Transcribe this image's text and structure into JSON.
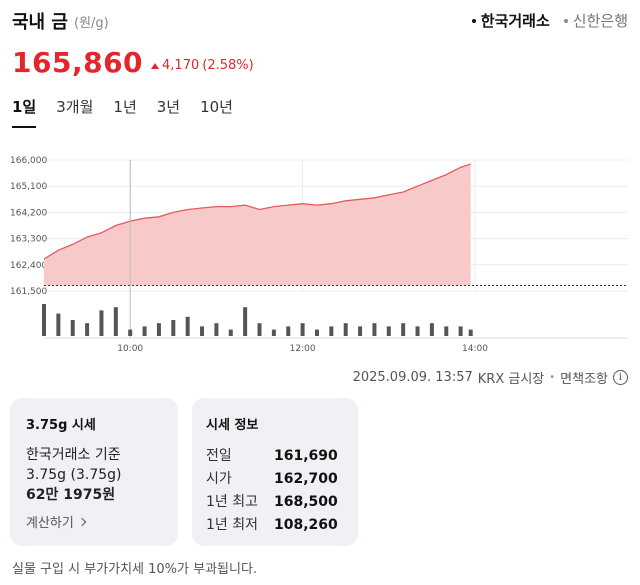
{
  "header": {
    "title": "국내 금",
    "unit": "(원/g)",
    "sources": [
      {
        "label": "한국거래소",
        "active": true
      },
      {
        "label": "신한은행",
        "active": false
      }
    ]
  },
  "price": {
    "current": "165,860",
    "change": "4,170",
    "change_pct": "(2.58%)",
    "direction_icon": "triangle-up-icon",
    "color": "#e3262b"
  },
  "period_tabs": [
    {
      "label": "1일",
      "active": true
    },
    {
      "label": "3개월",
      "active": false
    },
    {
      "label": "1년",
      "active": false
    },
    {
      "label": "3년",
      "active": false
    },
    {
      "label": "10년",
      "active": false
    }
  ],
  "chart_data": {
    "type": "area",
    "y_ticks": [
      "166,000",
      "165,100",
      "164,200",
      "163,300",
      "162,400",
      "161,500"
    ],
    "x_ticks": [
      "10:00",
      "12:00",
      "14:00"
    ],
    "ylim": [
      161500,
      166000
    ],
    "prev_close": 161690,
    "line_color": "#e55b5b",
    "fill_color": "#f7c9c9",
    "volume_color": "#555555",
    "x": [
      "09:00",
      "09:10",
      "09:20",
      "09:30",
      "09:40",
      "09:50",
      "10:00",
      "10:10",
      "10:20",
      "10:30",
      "10:40",
      "10:50",
      "11:00",
      "11:10",
      "11:20",
      "11:30",
      "11:40",
      "11:50",
      "12:00",
      "12:10",
      "12:20",
      "12:30",
      "12:40",
      "12:50",
      "13:00",
      "13:10",
      "13:20",
      "13:30",
      "13:40",
      "13:50",
      "13:57"
    ],
    "price": [
      162600,
      162900,
      163100,
      163350,
      163500,
      163750,
      163900,
      164000,
      164050,
      164200,
      164300,
      164350,
      164400,
      164400,
      164450,
      164300,
      164400,
      164450,
      164500,
      164450,
      164500,
      164600,
      164650,
      164700,
      164800,
      164900,
      165100,
      165300,
      165500,
      165750,
      165860
    ],
    "volume": [
      10,
      7,
      5,
      4,
      8,
      9,
      2,
      3,
      4,
      5,
      6,
      3,
      4,
      2,
      9,
      4,
      2,
      3,
      4,
      2,
      3,
      4,
      3,
      4,
      3,
      4,
      3,
      4,
      3,
      3,
      2
    ]
  },
  "footer_info": {
    "timestamp": "2025.09.09. 13:57",
    "market": "KRX 금시장",
    "disclaimer_link": "면책조항",
    "info_icon": "ⓘ"
  },
  "card_spot": {
    "title": "3.75g 시세",
    "line1": "한국거래소 기준",
    "line2": "3.75g (3.75g)",
    "line3": "62만 1975원",
    "link": "계산하기"
  },
  "card_stats": {
    "title": "시세 정보",
    "rows": [
      {
        "label": "전일",
        "value": "161,690"
      },
      {
        "label": "시가",
        "value": "162,700"
      },
      {
        "label": "1년 최고",
        "value": "168,500"
      },
      {
        "label": "1년 최저",
        "value": "108,260"
      }
    ]
  },
  "disclaimer": "실물 구입 시 부가가치세 10%가 부과됩니다."
}
